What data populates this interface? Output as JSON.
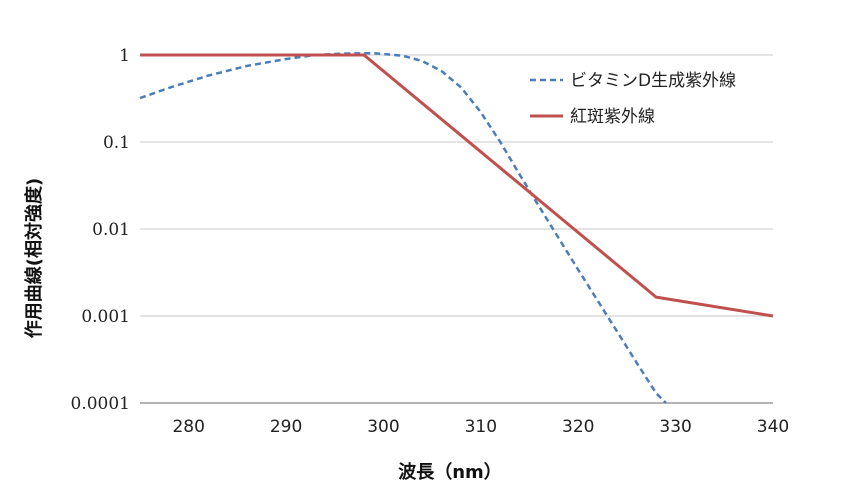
{
  "chart_data": {
    "type": "line",
    "xlabel": "波長（nm）",
    "ylabel": "作用曲線(相対強度)",
    "xlim": [
      275,
      340
    ],
    "ylim": [
      0.0001,
      1.2
    ],
    "yscale": "log",
    "x_ticks": [
      280,
      290,
      300,
      310,
      320,
      330,
      340
    ],
    "x_tick_labels": [
      "280",
      "290",
      "300",
      "310",
      "320",
      "330",
      "340"
    ],
    "y_ticks": [
      0.0001,
      0.001,
      0.01,
      0.1,
      1
    ],
    "y_tick_labels": [
      "0.0001",
      "0.001",
      "0.01",
      "0.1",
      "1"
    ],
    "grid": "horizontal",
    "legend_position": "top-right",
    "series": [
      {
        "name": "ビタミンD生成紫外線",
        "color": "#4a7ebb",
        "style": "dashed",
        "points": [
          [
            275,
            0.32
          ],
          [
            278,
            0.42
          ],
          [
            282,
            0.58
          ],
          [
            286,
            0.75
          ],
          [
            290,
            0.9
          ],
          [
            293,
            1.0
          ],
          [
            296,
            1.04
          ],
          [
            299,
            1.05
          ],
          [
            302,
            0.98
          ],
          [
            304,
            0.85
          ],
          [
            306,
            0.65
          ],
          [
            308,
            0.42
          ],
          [
            310,
            0.22
          ],
          [
            312,
            0.1
          ],
          [
            314,
            0.042
          ],
          [
            316,
            0.018
          ],
          [
            318,
            0.0078
          ],
          [
            320,
            0.0034
          ],
          [
            322,
            0.0015
          ],
          [
            324,
            0.00066
          ],
          [
            326,
            0.00029
          ],
          [
            328,
            0.00013
          ],
          [
            329,
            0.0001
          ]
        ]
      },
      {
        "name": "紅斑紫外線",
        "color": "#c0504d",
        "style": "solid",
        "points": [
          [
            275,
            1.0
          ],
          [
            298,
            1.0
          ],
          [
            328,
            0.00165
          ],
          [
            340,
            0.001
          ]
        ]
      }
    ]
  }
}
